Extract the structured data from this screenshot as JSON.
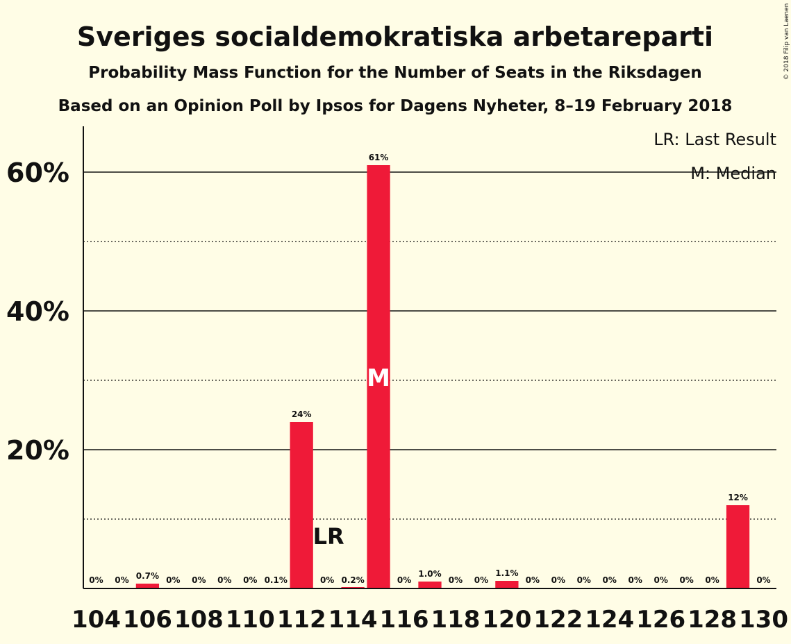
{
  "chart_data": {
    "type": "bar",
    "title": "Sveriges socialdemokratiska arbetareparti",
    "subtitle": "Probability Mass Function for the Number of Seats in the Riksdagen",
    "subtitle2": "Based on an Opinion Poll by Ipsos for Dagens Nyheter, 8–19 February 2018",
    "copyright": "© 2018 Filip van Laenen",
    "legend": [
      "LR: Last Result",
      "M: Median"
    ],
    "legend_position": "top-right",
    "x": [
      104,
      105,
      106,
      107,
      108,
      109,
      110,
      111,
      112,
      113,
      114,
      115,
      116,
      117,
      118,
      119,
      120,
      121,
      122,
      123,
      124,
      125,
      126,
      127,
      128,
      129,
      130
    ],
    "values": [
      0,
      0,
      0.7,
      0,
      0,
      0,
      0,
      0.1,
      24,
      0,
      0.2,
      61,
      0,
      1.0,
      0,
      0,
      1.1,
      0,
      0,
      0,
      0,
      0,
      0,
      0,
      0,
      12,
      0
    ],
    "data_labels": [
      "0%",
      "0%",
      "0.7%",
      "0%",
      "0%",
      "0%",
      "0%",
      "0.1%",
      "24%",
      "0%",
      "0.2%",
      "61%",
      "0%",
      "1.0%",
      "0%",
      "0%",
      "1.1%",
      "0%",
      "0%",
      "0%",
      "0%",
      "0%",
      "0%",
      "0%",
      "0%",
      "12%",
      "0%"
    ],
    "x_tick_labels": [
      "104",
      "106",
      "108",
      "110",
      "112",
      "114",
      "116",
      "118",
      "120",
      "122",
      "124",
      "126",
      "128",
      "130"
    ],
    "y_tick_labels": [
      "20%",
      "40%",
      "60%"
    ],
    "y_ticks": [
      20,
      40,
      60
    ],
    "y_minor_ticks": [
      10,
      30,
      50
    ],
    "ylim": [
      0,
      66.6
    ],
    "xlim": [
      103.5,
      130.5
    ],
    "last_result": {
      "x": 113,
      "label": "LR"
    },
    "median": {
      "x": 115,
      "label": "M"
    },
    "bar_color": "#ef1a38",
    "background": "#fffde6"
  }
}
